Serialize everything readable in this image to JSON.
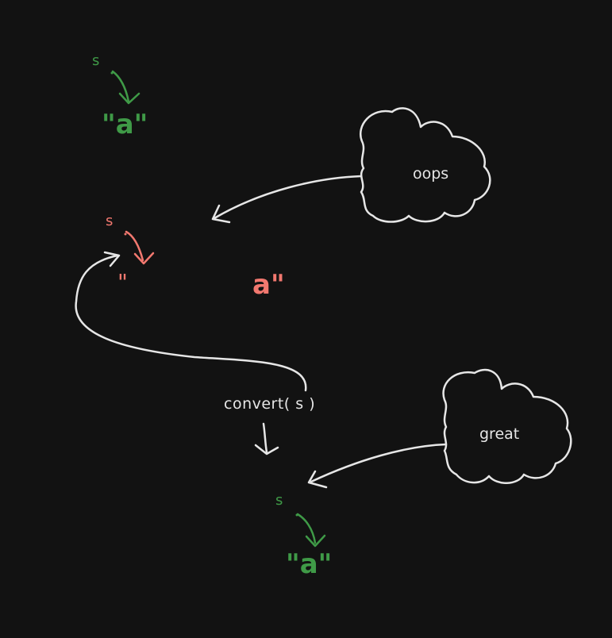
{
  "colors": {
    "background": "#121212",
    "ok": "#3f9a47",
    "bad": "#f2786f",
    "neutral": "#e6e6e6"
  },
  "top_group": {
    "var_label": "s",
    "string_value": "\"a\""
  },
  "middle_group": {
    "var_label": "s",
    "open_quote": "\"",
    "detached_value": "a\""
  },
  "bottom_group": {
    "var_label": "s",
    "string_value": "\"a\""
  },
  "function_call": "convert( s )",
  "clouds": {
    "top": "oops",
    "bottom": "great"
  }
}
